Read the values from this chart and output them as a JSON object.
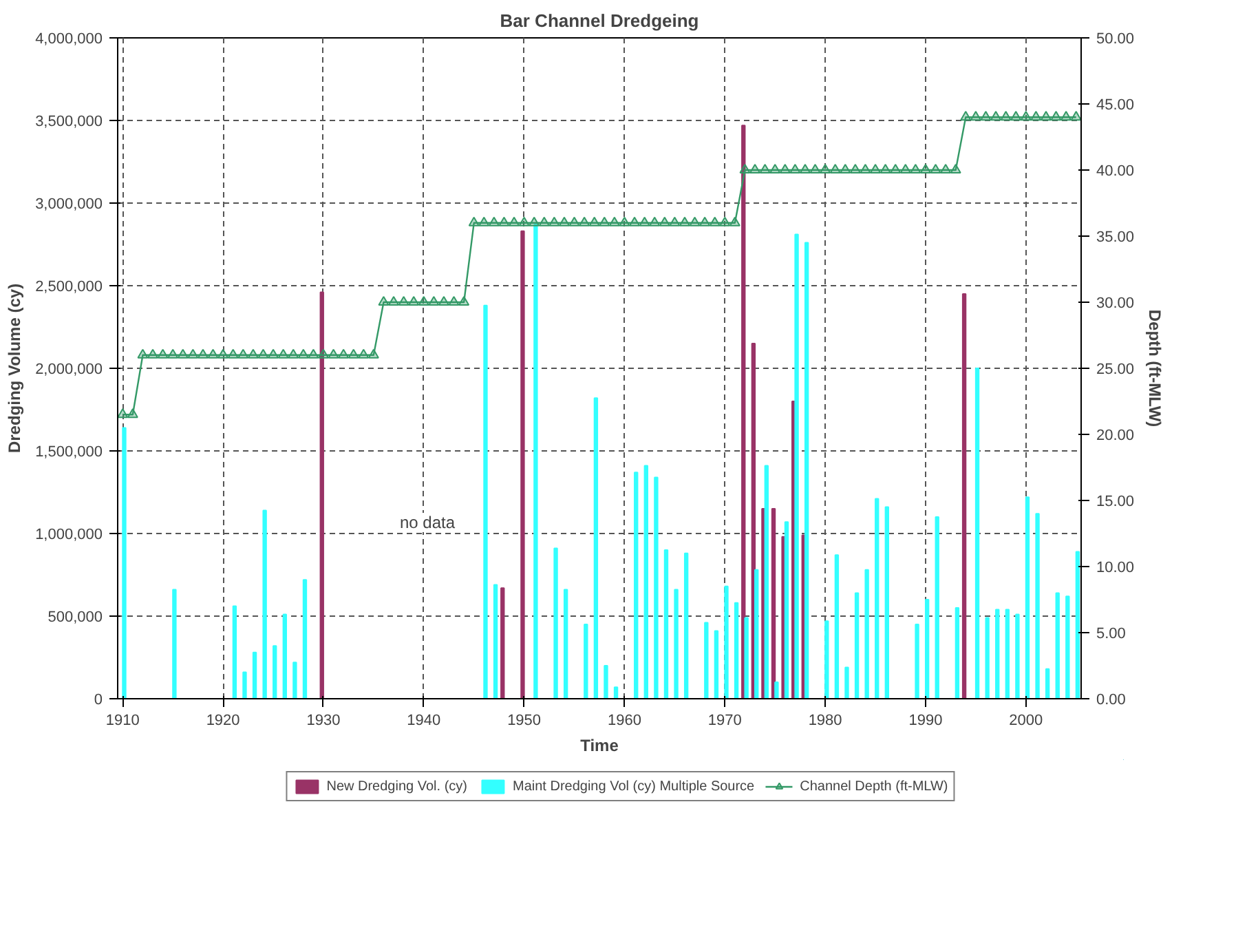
{
  "chart_data": {
    "type": "bar",
    "title": "Bar Channel Dredgeing",
    "xlabel": "Time",
    "ylabel": "Dredging Volume (cy)",
    "y2label": "Depth (ft-MLW)",
    "xlim": [
      1909.5,
      2005.5
    ],
    "xticks": [
      1910,
      1920,
      1930,
      1940,
      1950,
      1960,
      1970,
      1980,
      1990,
      2000
    ],
    "ylim": [
      0,
      4000000
    ],
    "yticks": [
      {
        "value": 0,
        "label": "0"
      },
      {
        "value": 500000,
        "label": "500,000"
      },
      {
        "value": 1000000,
        "label": "1,000,000"
      },
      {
        "value": 1500000,
        "label": "1,500,000"
      },
      {
        "value": 2000000,
        "label": "2,000,000"
      },
      {
        "value": 2500000,
        "label": "2,500,000"
      },
      {
        "value": 3000000,
        "label": "3,000,000"
      },
      {
        "value": 3500000,
        "label": "3,500,000"
      },
      {
        "value": 4000000,
        "label": "4,000,000"
      }
    ],
    "y2lim": [
      0,
      50
    ],
    "y2ticks": [
      {
        "value": 0,
        "label": "0.00"
      },
      {
        "value": 5,
        "label": "5.00"
      },
      {
        "value": 10,
        "label": "10.00"
      },
      {
        "value": 15,
        "label": "15.00"
      },
      {
        "value": 20,
        "label": "20.00"
      },
      {
        "value": 25,
        "label": "25.00"
      },
      {
        "value": 30,
        "label": "30.00"
      },
      {
        "value": 35,
        "label": "35.00"
      },
      {
        "value": 40,
        "label": "40.00"
      },
      {
        "value": 45,
        "label": "45.00"
      },
      {
        "value": 50,
        "label": "50.00"
      }
    ],
    "grid": true,
    "legend": "bottom",
    "annotations": [
      "no data"
    ],
    "series": [
      {
        "name": "New Dredging Vol. (cy)",
        "color": "#993366",
        "x": [
          1930,
          1948,
          1950,
          1972,
          1973,
          1974,
          1975,
          1976,
          1977,
          1978,
          1994
        ],
        "values": [
          2460000,
          670000,
          2830000,
          3470000,
          2150000,
          1150000,
          1150000,
          980000,
          1800000,
          990000,
          2450000
        ]
      },
      {
        "name": "Maint Dredging Vol (cy) Multiple Source",
        "color": "#33ffff",
        "x": [
          1910,
          1915,
          1921,
          1922,
          1923,
          1924,
          1925,
          1926,
          1927,
          1928,
          1946,
          1947,
          1951,
          1953,
          1954,
          1956,
          1957,
          1958,
          1959,
          1961,
          1962,
          1963,
          1964,
          1965,
          1966,
          1968,
          1969,
          1970,
          1971,
          1972,
          1973,
          1974,
          1975,
          1976,
          1977,
          1978,
          1980,
          1981,
          1982,
          1983,
          1984,
          1985,
          1986,
          1989,
          1990,
          1991,
          1993,
          1995,
          1996,
          1997,
          1998,
          1999,
          2000,
          2001,
          2002,
          2003,
          2004,
          2005
        ],
        "values": [
          1640000,
          660000,
          560000,
          160000,
          280000,
          1140000,
          320000,
          510000,
          220000,
          720000,
          2380000,
          690000,
          2870000,
          910000,
          660000,
          450000,
          1820000,
          200000,
          70000,
          1370000,
          1410000,
          1340000,
          900000,
          660000,
          880000,
          460000,
          410000,
          680000,
          580000,
          490000,
          780000,
          1410000,
          100000,
          1070000,
          2810000,
          2760000,
          470000,
          870000,
          190000,
          640000,
          780000,
          1210000,
          1160000,
          450000,
          600000,
          1100000,
          550000,
          2000000,
          490000,
          540000,
          540000,
          510000,
          1220000,
          1120000,
          180000,
          640000,
          620000,
          890000
        ]
      },
      {
        "name": "Channel Depth (ft-MLW)",
        "type": "line",
        "axis": "y2",
        "marker": "triangle",
        "color": "#339966",
        "x": [
          1910,
          1911,
          1912,
          1913,
          1914,
          1915,
          1916,
          1917,
          1918,
          1919,
          1920,
          1921,
          1922,
          1923,
          1924,
          1925,
          1926,
          1927,
          1928,
          1929,
          1930,
          1931,
          1932,
          1933,
          1934,
          1935,
          1936,
          1937,
          1938,
          1939,
          1940,
          1941,
          1942,
          1943,
          1944,
          1945,
          1946,
          1947,
          1948,
          1949,
          1950,
          1951,
          1952,
          1953,
          1954,
          1955,
          1956,
          1957,
          1958,
          1959,
          1960,
          1961,
          1962,
          1963,
          1964,
          1965,
          1966,
          1967,
          1968,
          1969,
          1970,
          1971,
          1972,
          1973,
          1974,
          1975,
          1976,
          1977,
          1978,
          1979,
          1980,
          1981,
          1982,
          1983,
          1984,
          1985,
          1986,
          1987,
          1988,
          1989,
          1990,
          1991,
          1992,
          1993,
          1994,
          1995,
          1996,
          1997,
          1998,
          1999,
          2000,
          2001,
          2002,
          2003,
          2004,
          2005
        ],
        "values": [
          21.5,
          21.5,
          26,
          26,
          26,
          26,
          26,
          26,
          26,
          26,
          26,
          26,
          26,
          26,
          26,
          26,
          26,
          26,
          26,
          26,
          26,
          26,
          26,
          26,
          26,
          26,
          30,
          30,
          30,
          30,
          30,
          30,
          30,
          30,
          30,
          36,
          36,
          36,
          36,
          36,
          36,
          36,
          36,
          36,
          36,
          36,
          36,
          36,
          36,
          36,
          36,
          36,
          36,
          36,
          36,
          36,
          36,
          36,
          36,
          36,
          36,
          36,
          40,
          40,
          40,
          40,
          40,
          40,
          40,
          40,
          40,
          40,
          40,
          40,
          40,
          40,
          40,
          40,
          40,
          40,
          40,
          40,
          40,
          40,
          44,
          44,
          44,
          44,
          44,
          44,
          44,
          44,
          44,
          44,
          44,
          44
        ]
      }
    ]
  }
}
